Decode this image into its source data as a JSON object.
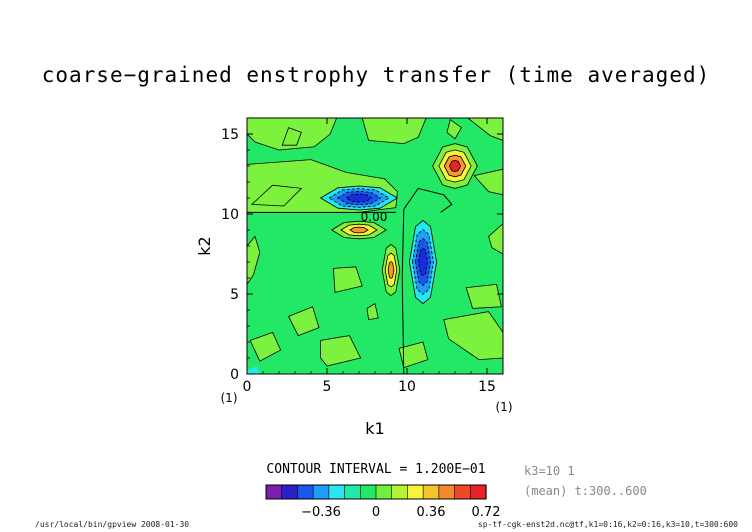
{
  "title": "coarse−grained enstrophy transfer (time averaged)",
  "chart_data": {
    "type": "heatmap",
    "xlabel": "k1",
    "ylabel": "k2",
    "xlim": [
      0,
      16
    ],
    "ylim": [
      0,
      16
    ],
    "x_ticks": [
      "0",
      "5",
      "10",
      "15"
    ],
    "y_ticks": [
      "0",
      "5",
      "10",
      "15"
    ],
    "corner_x_label": "(1)",
    "corner_y_label": "(1)",
    "contour_label": "0.00",
    "contour_interval_text": "CONTOUR INTERVAL = 1.200E−01",
    "colorbar_ticks": [
      "−0.36",
      "0",
      "0.36",
      "0.72"
    ],
    "colorbar_range": [
      -0.72,
      0.72
    ],
    "features": [
      {
        "k1": 7,
        "k2": 11,
        "sign": "negative",
        "peak": -0.6
      },
      {
        "k1": 11,
        "k2": 7,
        "sign": "negative",
        "peak": -0.6
      },
      {
        "k1": 13,
        "k2": 13,
        "sign": "positive",
        "peak": 0.6
      },
      {
        "k1": 7,
        "k2": 9,
        "sign": "positive",
        "peak": 0.36
      },
      {
        "k1": 9,
        "k2": 6.5,
        "sign": "positive",
        "peak": 0.36
      }
    ]
  },
  "side_info": {
    "line1": "k3=10 1",
    "line2": "(mean) t:300..600"
  },
  "footer": {
    "left": "/usr/local/bin/gpview  2008-01-30",
    "right": "sp-tf-cgk-enst2d.nc@tf,k1=0:16,k2=0:16,k3=10,t=300:600"
  },
  "colors": {
    "background_field": "#22e866",
    "light_green": "#7cf23f",
    "cyan": "#22e8f0",
    "blue": "#1a2bd8",
    "yellow": "#f5f33a",
    "orange": "#f59a2a",
    "red": "#e8212a",
    "colorbar": [
      "#7a1fb0",
      "#2a20c8",
      "#1a55ee",
      "#1e9ef8",
      "#2ae6f2",
      "#22e8a8",
      "#22e866",
      "#6ef03c",
      "#b8f232",
      "#f5f33a",
      "#f5c42e",
      "#f5882a",
      "#ee4828",
      "#e8212a"
    ]
  }
}
